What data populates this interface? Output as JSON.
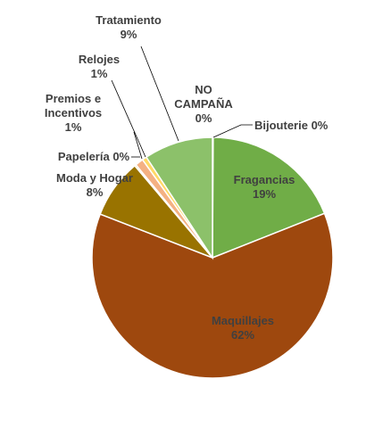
{
  "chart_data": {
    "type": "pie",
    "title": "",
    "start_angle_deg": 0,
    "direction": "clockwise",
    "slices": [
      {
        "name": "NO CAMPAÑA",
        "label_lines": [
          "NO",
          "CAMPAÑA"
        ],
        "value_label": "0%",
        "value": 0.0,
        "color": "#FFFFFF"
      },
      {
        "name": "Bijouterie",
        "label_lines": [
          "Bijouterie 0%"
        ],
        "value_label": "",
        "value": 0.1,
        "color": "#C55A11"
      },
      {
        "name": "Fragancias",
        "label_lines": [
          "Fragancias"
        ],
        "value_label": "19%",
        "value": 18.8,
        "color": "#70AD47"
      },
      {
        "name": "Maquillajes",
        "label_lines": [
          "Maquillajes"
        ],
        "value_label": "62%",
        "value": 61.6,
        "color": "#9E480E"
      },
      {
        "name": "Moda y Hogar",
        "label_lines": [
          "Moda y Hogar"
        ],
        "value_label": "8%",
        "value": 7.9,
        "color": "#997300"
      },
      {
        "name": "Papelería",
        "label_lines": [
          "Papelería 0%"
        ],
        "value_label": "",
        "value": 0.2,
        "color": "#FFC000"
      },
      {
        "name": "Premios e Incentivos",
        "label_lines": [
          "Premios e",
          "Incentivos"
        ],
        "value_label": "1%",
        "value": 1.1,
        "color": "#F4B183"
      },
      {
        "name": "Relojes",
        "label_lines": [
          "Relojes"
        ],
        "value_label": "1%",
        "value": 0.6,
        "color": "#FFD966"
      },
      {
        "name": "Tratamiento",
        "label_lines": [
          "Tratamiento"
        ],
        "value_label": "9%",
        "value": 9.2,
        "color": "#8CC16A"
      }
    ]
  }
}
